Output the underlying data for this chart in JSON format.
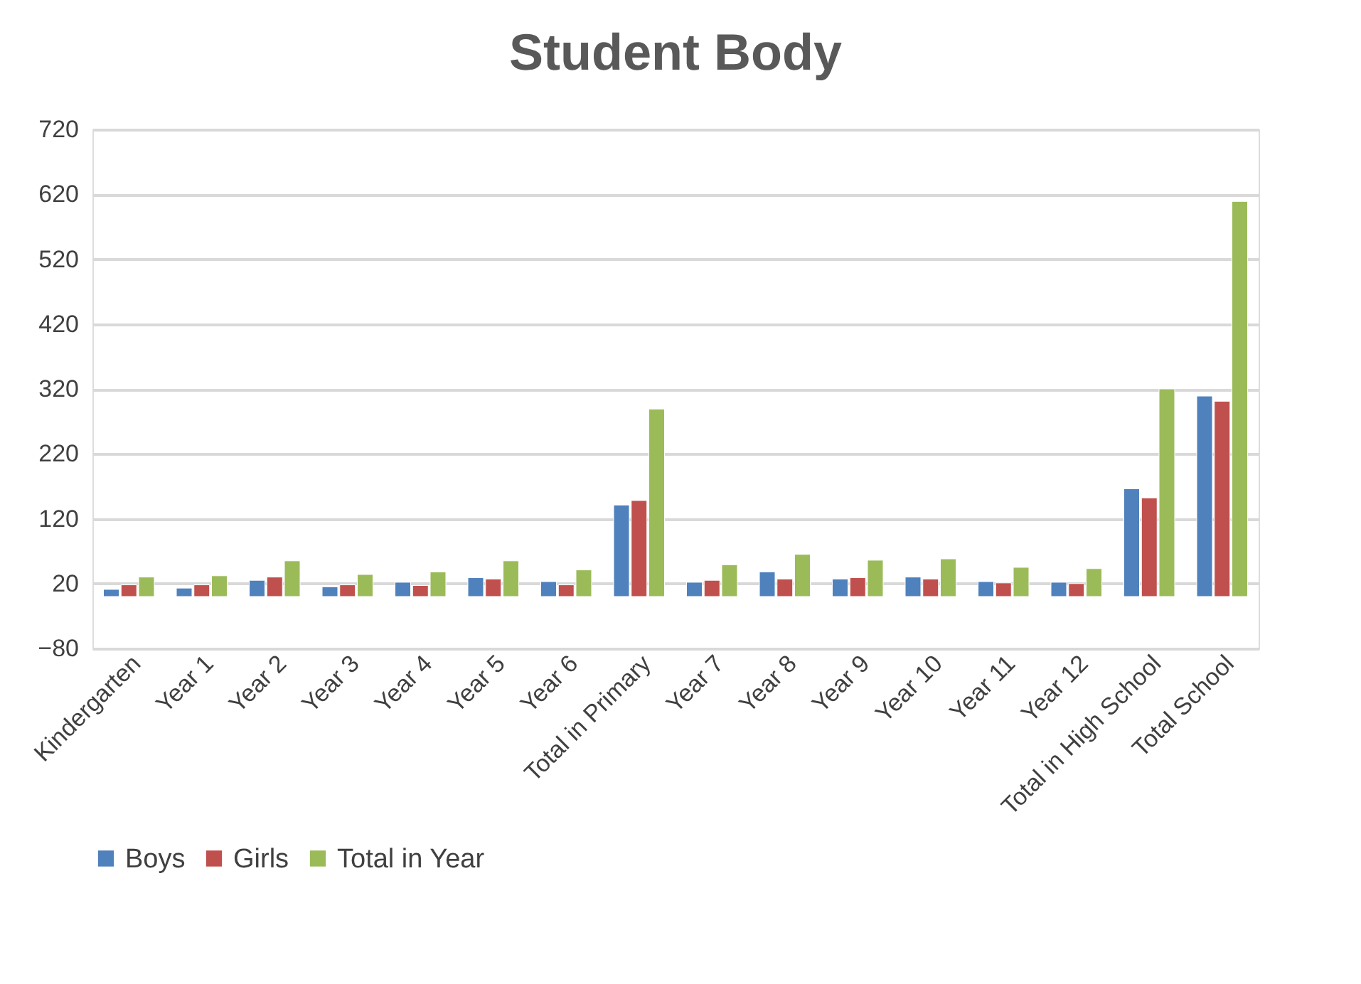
{
  "chart_data": {
    "type": "bar",
    "title": "Student Body",
    "categories": [
      "Kindergarten",
      "Year 1",
      "Year 2",
      "Year 3",
      "Year 4",
      "Year 5",
      "Year 6",
      "Total in Primary",
      "Year 7",
      "Year 8",
      "Year 9",
      "Year 10",
      "Year 11",
      "Year 12",
      "Total in High School",
      "Total School"
    ],
    "series": [
      {
        "name": "Boys",
        "color": "#4f81bd",
        "values": [
          11,
          13,
          25,
          15,
          22,
          29,
          23,
          141,
          22,
          38,
          27,
          30,
          23,
          22,
          166,
          309
        ]
      },
      {
        "name": "Girls",
        "color": "#c0504d",
        "values": [
          18,
          18,
          30,
          18,
          17,
          27,
          18,
          148,
          25,
          27,
          29,
          27,
          21,
          20,
          152,
          301
        ]
      },
      {
        "name": "Total in Year",
        "color": "#9bbb59",
        "values": [
          30,
          32,
          55,
          34,
          38,
          55,
          41,
          289,
          49,
          65,
          56,
          58,
          45,
          43,
          320,
          609
        ]
      }
    ],
    "ylim": [
      -80,
      720
    ],
    "yticks": [
      -80,
      20,
      120,
      220,
      320,
      420,
      520,
      620,
      720
    ],
    "grid": "y",
    "legend": "bottom"
  }
}
